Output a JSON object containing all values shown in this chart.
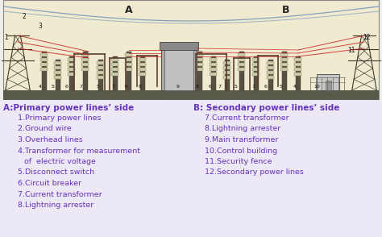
{
  "bg_color": "#f0eee8",
  "diagram_bg": "#f5f0d8",
  "diagram_border": "#999999",
  "text_color": "#6633bb",
  "text_bg": "#e8e4f0",
  "left_header": "A:Primary power lines’ side",
  "right_header": "B: Secondary power lines’ side",
  "left_items": [
    "1.Primary power lines",
    "2.Ground wire",
    "3.Overhead lines",
    "4.Transformer for measurement",
    "of  electric voltage",
    "5.Disconnect switch",
    "6.Circuit breaker",
    "7.Current transformer",
    "8.Lightning arrester"
  ],
  "right_items": [
    "7.Current transformer",
    "8.Lightning arrester",
    "9.Main transformer",
    "10.Control building",
    "11.Security fence",
    "12.Secondary power lines"
  ],
  "font_size_header": 7.5,
  "font_size_item": 6.8,
  "label_A": "A",
  "label_B": "B"
}
